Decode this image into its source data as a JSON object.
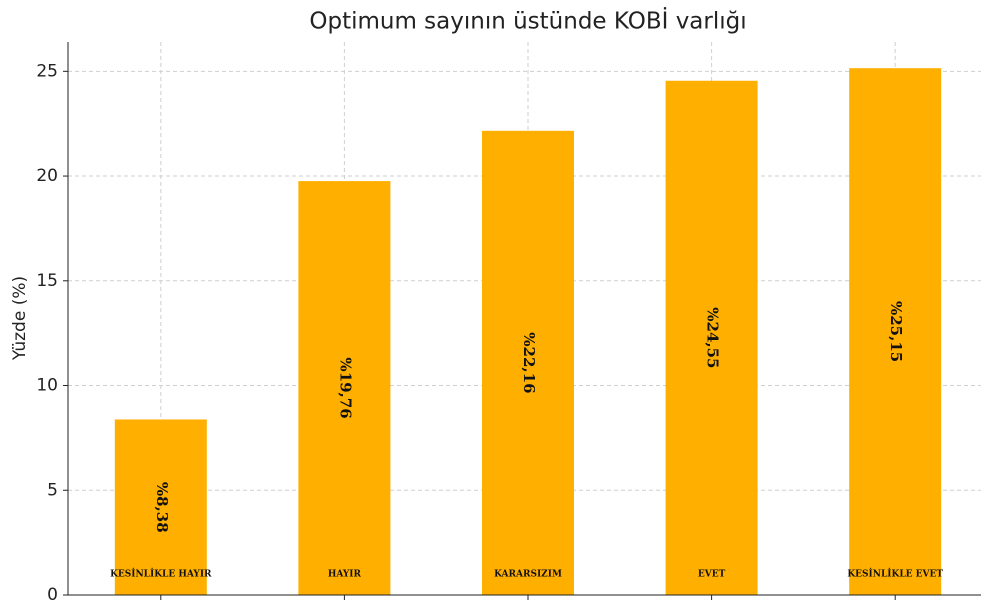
{
  "chart_data": {
    "type": "bar",
    "title": "Optimum sayının üstünde KOBİ varlığı",
    "y_label": "Yüzde (%)",
    "categories": [
      "KESİNLİKLE HAYIR",
      "HAYIR",
      "KARARSIZIM",
      "EVET",
      "KESİNLİKLE EVET"
    ],
    "values": [
      8.38,
      19.76,
      22.16,
      24.55,
      25.15
    ],
    "value_labels": [
      "%8,38",
      "%19,76",
      "%22,16",
      "%24,55",
      "%25,15"
    ],
    "color": "#ffaf00",
    "ylim": [
      0,
      26.4
    ],
    "yticks": [
      0,
      5,
      10,
      15,
      20,
      25
    ],
    "grid": true
  }
}
